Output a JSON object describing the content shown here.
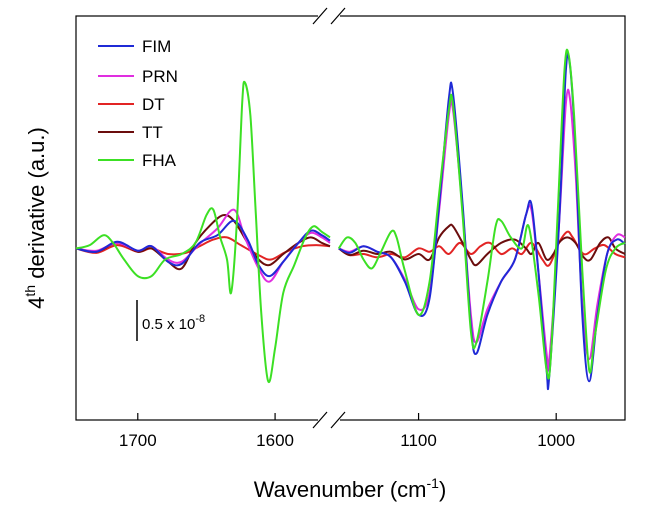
{
  "chart_data": {
    "type": "line",
    "xlabel_main": "Wavenumber (cm",
    "xlabel_sup": "-1",
    "xlabel_end": ")",
    "ylabel_pre": "4",
    "ylabel_sup": "th",
    "ylabel_post": " derivative (a.u.)",
    "axis_break": true,
    "panels": [
      {
        "xlim": [
          1745,
          1560
        ],
        "ticks": [
          1700,
          1600
        ],
        "tick_labels": [
          "1700",
          "1600"
        ]
      },
      {
        "xlim": [
          1160,
          950
        ],
        "ticks": [
          1100,
          1000
        ],
        "tick_labels": [
          "1100",
          "1000"
        ]
      }
    ],
    "ylim": [
      -1.55,
      2.1
    ],
    "scale_bar": {
      "label_main": "0.5 x 10",
      "label_sup": "-8",
      "value": 0.5
    },
    "legend_position": "top-left",
    "series": [
      {
        "name": "FIM",
        "color": "#1f2ad6",
        "left": [
          [
            1745,
            0
          ],
          [
            1730,
            -0.03
          ],
          [
            1715,
            0.06
          ],
          [
            1700,
            -0.02
          ],
          [
            1690,
            0.02
          ],
          [
            1678,
            -0.12
          ],
          [
            1668,
            -0.14
          ],
          [
            1655,
            0.05
          ],
          [
            1642,
            0.12
          ],
          [
            1630,
            0.25
          ],
          [
            1620,
            0.08
          ],
          [
            1612,
            -0.15
          ],
          [
            1604,
            -0.25
          ],
          [
            1594,
            -0.12
          ],
          [
            1583,
            0.05
          ],
          [
            1574,
            0.16
          ],
          [
            1566,
            0.12
          ],
          [
            1560,
            0.07
          ]
        ],
        "right": [
          [
            1158,
            0
          ],
          [
            1150,
            -0.04
          ],
          [
            1140,
            0.02
          ],
          [
            1130,
            -0.03
          ],
          [
            1120,
            -0.08
          ],
          [
            1110,
            -0.3
          ],
          [
            1100,
            -0.6
          ],
          [
            1092,
            -0.45
          ],
          [
            1085,
            0.4
          ],
          [
            1078,
            1.35
          ],
          [
            1075,
            1.4
          ],
          [
            1068,
            0.4
          ],
          [
            1062,
            -0.7
          ],
          [
            1058,
            -0.95
          ],
          [
            1050,
            -0.6
          ],
          [
            1040,
            -0.3
          ],
          [
            1030,
            -0.1
          ],
          [
            1022,
            0.3
          ],
          [
            1018,
            0.4
          ],
          [
            1013,
            -0.2
          ],
          [
            1007,
            -1.1
          ],
          [
            1005,
            -1.15
          ],
          [
            998,
            0.2
          ],
          [
            993,
            1.6
          ],
          [
            990,
            1.65
          ],
          [
            986,
            0.9
          ],
          [
            981,
            -0.6
          ],
          [
            976,
            -1.2
          ],
          [
            970,
            -0.6
          ],
          [
            963,
            -0.05
          ],
          [
            956,
            0.08
          ],
          [
            950,
            0.04
          ]
        ]
      },
      {
        "name": "PRN",
        "color": "#e02ee0",
        "left": [
          [
            1745,
            0
          ],
          [
            1730,
            -0.02
          ],
          [
            1715,
            0.05
          ],
          [
            1700,
            -0.02
          ],
          [
            1690,
            0.02
          ],
          [
            1678,
            -0.1
          ],
          [
            1668,
            -0.12
          ],
          [
            1655,
            0.04
          ],
          [
            1642,
            0.18
          ],
          [
            1630,
            0.35
          ],
          [
            1622,
            0.1
          ],
          [
            1612,
            -0.18
          ],
          [
            1604,
            -0.3
          ],
          [
            1594,
            -0.12
          ],
          [
            1583,
            0.05
          ],
          [
            1574,
            0.14
          ],
          [
            1566,
            0.1
          ],
          [
            1560,
            0.05
          ]
        ],
        "right": [
          [
            1158,
            0
          ],
          [
            1150,
            -0.03
          ],
          [
            1140,
            0.02
          ],
          [
            1130,
            -0.03
          ],
          [
            1120,
            -0.08
          ],
          [
            1110,
            -0.28
          ],
          [
            1100,
            -0.55
          ],
          [
            1092,
            -0.4
          ],
          [
            1085,
            0.35
          ],
          [
            1078,
            1.2
          ],
          [
            1075,
            1.25
          ],
          [
            1068,
            0.35
          ],
          [
            1062,
            -0.6
          ],
          [
            1058,
            -0.85
          ],
          [
            1050,
            -0.55
          ],
          [
            1040,
            -0.3
          ],
          [
            1030,
            -0.1
          ],
          [
            1022,
            0.3
          ],
          [
            1018,
            0.35
          ],
          [
            1013,
            -0.2
          ],
          [
            1007,
            -0.95
          ],
          [
            1005,
            -1.0
          ],
          [
            998,
            0.2
          ],
          [
            993,
            1.3
          ],
          [
            990,
            1.35
          ],
          [
            986,
            0.7
          ],
          [
            981,
            -0.5
          ],
          [
            976,
            -1.0
          ],
          [
            970,
            -0.5
          ],
          [
            963,
            -0.05
          ],
          [
            956,
            0.12
          ],
          [
            950,
            0.1
          ]
        ]
      },
      {
        "name": "DT",
        "color": "#e22424",
        "left": [
          [
            1745,
            0
          ],
          [
            1730,
            -0.04
          ],
          [
            1715,
            0.03
          ],
          [
            1700,
            -0.03
          ],
          [
            1690,
            0.0
          ],
          [
            1678,
            -0.05
          ],
          [
            1665,
            -0.04
          ],
          [
            1655,
            0.02
          ],
          [
            1645,
            0.08
          ],
          [
            1635,
            0.1
          ],
          [
            1625,
            0.03
          ],
          [
            1612,
            -0.06
          ],
          [
            1603,
            -0.1
          ],
          [
            1592,
            -0.03
          ],
          [
            1580,
            0.02
          ],
          [
            1570,
            0.03
          ],
          [
            1560,
            0.02
          ]
        ],
        "right": [
          [
            1158,
            0
          ],
          [
            1150,
            -0.06
          ],
          [
            1140,
            -0.05
          ],
          [
            1130,
            -0.08
          ],
          [
            1120,
            -0.05
          ],
          [
            1110,
            -0.08
          ],
          [
            1100,
            0.0
          ],
          [
            1092,
            -0.03
          ],
          [
            1085,
            0.02
          ],
          [
            1078,
            -0.05
          ],
          [
            1070,
            0.05
          ],
          [
            1062,
            -0.05
          ],
          [
            1055,
            0.02
          ],
          [
            1048,
            0.05
          ],
          [
            1040,
            -0.05
          ],
          [
            1032,
            0.0
          ],
          [
            1025,
            -0.05
          ],
          [
            1018,
            0.05
          ],
          [
            1010,
            -0.1
          ],
          [
            1005,
            -0.15
          ],
          [
            998,
            0.05
          ],
          [
            992,
            0.15
          ],
          [
            988,
            0.1
          ],
          [
            980,
            -0.05
          ],
          [
            972,
            0.0
          ],
          [
            965,
            0.03
          ],
          [
            957,
            -0.05
          ],
          [
            950,
            -0.08
          ]
        ]
      },
      {
        "name": "TT",
        "color": "#6b0d0d",
        "left": [
          [
            1745,
            0
          ],
          [
            1730,
            -0.03
          ],
          [
            1715,
            0.05
          ],
          [
            1700,
            -0.03
          ],
          [
            1690,
            0.0
          ],
          [
            1678,
            -0.12
          ],
          [
            1668,
            -0.18
          ],
          [
            1658,
            0.05
          ],
          [
            1648,
            0.2
          ],
          [
            1638,
            0.3
          ],
          [
            1630,
            0.25
          ],
          [
            1620,
            0.05
          ],
          [
            1612,
            -0.1
          ],
          [
            1604,
            -0.15
          ],
          [
            1594,
            -0.05
          ],
          [
            1583,
            0.05
          ],
          [
            1574,
            0.1
          ],
          [
            1566,
            0.05
          ],
          [
            1560,
            0.02
          ]
        ],
        "right": [
          [
            1158,
            0
          ],
          [
            1150,
            -0.06
          ],
          [
            1140,
            -0.02
          ],
          [
            1130,
            -0.05
          ],
          [
            1120,
            -0.03
          ],
          [
            1110,
            -0.1
          ],
          [
            1100,
            -0.05
          ],
          [
            1092,
            -0.1
          ],
          [
            1085,
            0.1
          ],
          [
            1078,
            0.2
          ],
          [
            1075,
            0.2
          ],
          [
            1068,
            0.05
          ],
          [
            1062,
            -0.1
          ],
          [
            1058,
            -0.15
          ],
          [
            1050,
            -0.05
          ],
          [
            1040,
            0.05
          ],
          [
            1030,
            0.08
          ],
          [
            1022,
            0.0
          ],
          [
            1018,
            -0.05
          ],
          [
            1013,
            0.05
          ],
          [
            1007,
            -0.1
          ],
          [
            1002,
            -0.05
          ],
          [
            998,
            0.05
          ],
          [
            992,
            0.1
          ],
          [
            986,
            0.05
          ],
          [
            980,
            -0.08
          ],
          [
            975,
            -0.1
          ],
          [
            968,
            0.05
          ],
          [
            962,
            0.1
          ],
          [
            957,
            0.0
          ],
          [
            950,
            -0.05
          ]
        ]
      },
      {
        "name": "FHA",
        "color": "#3ce024",
        "left": [
          [
            1745,
            0
          ],
          [
            1735,
            0.03
          ],
          [
            1725,
            0.12
          ],
          [
            1718,
            0.05
          ],
          [
            1710,
            -0.1
          ],
          [
            1700,
            -0.25
          ],
          [
            1690,
            -0.25
          ],
          [
            1680,
            -0.1
          ],
          [
            1668,
            -0.05
          ],
          [
            1658,
            0.05
          ],
          [
            1650,
            0.3
          ],
          [
            1645,
            0.35
          ],
          [
            1640,
            0.1
          ],
          [
            1635,
            -0.1
          ],
          [
            1632,
            -0.4
          ],
          [
            1628,
            0.2
          ],
          [
            1624,
            1.3
          ],
          [
            1622,
            1.5
          ],
          [
            1618,
            1.2
          ],
          [
            1614,
            0.3
          ],
          [
            1610,
            -0.6
          ],
          [
            1605,
            -1.2
          ],
          [
            1600,
            -0.9
          ],
          [
            1594,
            -0.4
          ],
          [
            1586,
            -0.15
          ],
          [
            1578,
            0.1
          ],
          [
            1572,
            0.2
          ],
          [
            1566,
            0.15
          ],
          [
            1560,
            0.1
          ]
        ],
        "right": [
          [
            1158,
            0
          ],
          [
            1152,
            0.1
          ],
          [
            1146,
            0.05
          ],
          [
            1140,
            -0.1
          ],
          [
            1134,
            -0.18
          ],
          [
            1128,
            -0.05
          ],
          [
            1120,
            0.15
          ],
          [
            1116,
            0.1
          ],
          [
            1110,
            -0.2
          ],
          [
            1100,
            -0.6
          ],
          [
            1092,
            -0.3
          ],
          [
            1085,
            0.5
          ],
          [
            1078,
            1.25
          ],
          [
            1075,
            1.3
          ],
          [
            1068,
            0.3
          ],
          [
            1062,
            -0.75
          ],
          [
            1058,
            -0.85
          ],
          [
            1050,
            -0.3
          ],
          [
            1044,
            0.2
          ],
          [
            1040,
            0.25
          ],
          [
            1033,
            0.1
          ],
          [
            1025,
            0.0
          ],
          [
            1020,
            0.2
          ],
          [
            1013,
            -0.4
          ],
          [
            1007,
            -1.1
          ],
          [
            1004,
            -1.0
          ],
          [
            999,
            0.3
          ],
          [
            994,
            1.6
          ],
          [
            991,
            1.75
          ],
          [
            987,
            1.2
          ],
          [
            981,
            -0.2
          ],
          [
            976,
            -1.1
          ],
          [
            972,
            -0.8
          ],
          [
            964,
            -0.2
          ],
          [
            957,
            0.0
          ],
          [
            950,
            0.05
          ]
        ]
      }
    ]
  }
}
